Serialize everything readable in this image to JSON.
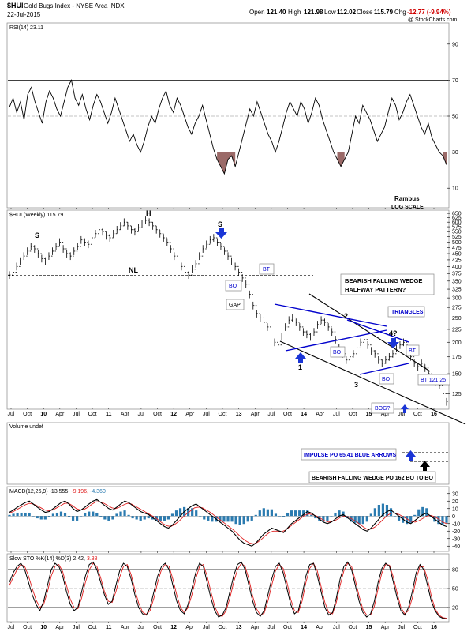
{
  "header": {
    "symbol": "$HUI",
    "name": "Gold Bugs Index - NYSE Arca INDX",
    "date": "22-Jul-2015",
    "open_label": "Open",
    "open": "121.40",
    "high_label": "High",
    "high": "121.98",
    "low_label": "Low",
    "low": "112.02",
    "close_label": "Close",
    "close": "115.79",
    "chg_label": "Chg",
    "chg": "-12.77 (-9.94%)",
    "brand": "@ StockCharts.com"
  },
  "colors": {
    "price": "#000000",
    "pattern": "#0000cc",
    "arrow": "#1a35d6",
    "rsi_fill": "#9b6a68",
    "macd_hist": "#2b7bb0",
    "signal": "#e02020"
  },
  "chart_data": [
    {
      "type": "line",
      "name": "rsi",
      "label": "RSI(14) 23.11",
      "yticks": [
        10,
        30,
        50,
        70,
        90
      ],
      "ylim": [
        0,
        100
      ],
      "levels": [
        30,
        70
      ],
      "values": [
        55,
        60,
        52,
        58,
        48,
        62,
        66,
        58,
        52,
        46,
        58,
        64,
        60,
        54,
        50,
        58,
        66,
        70,
        60,
        56,
        62,
        54,
        48,
        56,
        62,
        58,
        52,
        46,
        52,
        60,
        54,
        48,
        42,
        36,
        40,
        34,
        30,
        36,
        44,
        50,
        46,
        54,
        60,
        64,
        56,
        52,
        60,
        56,
        50,
        44,
        40,
        46,
        50,
        56,
        48,
        40,
        32,
        26,
        22,
        18,
        26,
        28,
        22,
        30,
        38,
        46,
        54,
        50,
        58,
        52,
        46,
        40,
        36,
        30,
        36,
        44,
        52,
        58,
        54,
        50,
        58,
        54,
        46,
        52,
        60,
        56,
        48,
        42,
        36,
        30,
        26,
        22,
        26,
        30,
        40,
        50,
        46,
        56,
        52,
        48,
        42,
        36,
        40,
        44,
        52,
        60,
        56,
        48,
        52,
        58,
        62,
        56,
        50,
        44,
        40,
        46,
        38,
        34,
        30,
        28,
        23
      ]
    },
    {
      "type": "line",
      "name": "price",
      "label": "$HUI (Weekly) 115.79",
      "scale": "log",
      "yticks": [
        125,
        150,
        175,
        200,
        225,
        250,
        275,
        300,
        325,
        350,
        375,
        400,
        425,
        450,
        475,
        500,
        525,
        550,
        575,
        600,
        625,
        650
      ],
      "ylim": [
        110,
        660
      ],
      "x_labels": [
        "Jul",
        "Oct",
        "10",
        "Apr",
        "Jul",
        "Oct",
        "11",
        "Apr",
        "Jul",
        "Oct",
        "12",
        "Apr",
        "Jul",
        "Oct",
        "13",
        "Apr",
        "Jul",
        "Oct",
        "14",
        "Apr",
        "Jul",
        "Oct",
        "15",
        "Apr",
        "Jul",
        "Oct",
        "16"
      ],
      "values": [
        370,
        380,
        400,
        420,
        440,
        460,
        480,
        470,
        450,
        430,
        420,
        440,
        460,
        480,
        500,
        470,
        450,
        440,
        460,
        480,
        510,
        500,
        490,
        520,
        540,
        560,
        550,
        530,
        520,
        540,
        560,
        580,
        600,
        580,
        560,
        550,
        570,
        590,
        610,
        600,
        580,
        560,
        540,
        520,
        500,
        470,
        440,
        420,
        400,
        380,
        370,
        390,
        410,
        440,
        470,
        490,
        510,
        520,
        500,
        480,
        460,
        440,
        420,
        400,
        380,
        360,
        340,
        310,
        280,
        260,
        250,
        240,
        230,
        210,
        200,
        195,
        210,
        230,
        245,
        250,
        240,
        230,
        220,
        215,
        210,
        220,
        235,
        245,
        240,
        230,
        220,
        205,
        190,
        180,
        170,
        175,
        180,
        190,
        200,
        205,
        195,
        185,
        180,
        170,
        165,
        170,
        175,
        180,
        190,
        195,
        200,
        190,
        175,
        165,
        160,
        165,
        158,
        150,
        145,
        140,
        135,
        125,
        116
      ],
      "annotations": [
        "S",
        "H",
        "S",
        "NL",
        "BO",
        "BT",
        "GAP",
        "BEARISH FALLING WEDGE",
        "HALFWAY PATTERN?",
        "TRIANGLES",
        "BO",
        "1",
        "2",
        "3",
        "4?",
        "BO",
        "BT",
        "BT 121.25",
        "BOG?",
        "Rambus",
        "LOG SCALE"
      ]
    },
    {
      "type": "bar",
      "name": "volume",
      "label": "Volume undef",
      "annotations": [
        "IMPULSE PO 65.41 BLUE ARROWS",
        "BEARISH FALLING WEDGE PO 162 BO TO BO"
      ]
    },
    {
      "type": "line",
      "name": "macd",
      "label": "MACD(12,26,9) -13.555, -9.196, -4.360",
      "label_parts": [
        "MACD(12,26,9)",
        "-13.555,",
        "-9.196,",
        "-4.360"
      ],
      "yticks": [
        30,
        20,
        10,
        0,
        -10,
        -20,
        -30,
        -40
      ],
      "ylim": [
        -45,
        35
      ],
      "macd": [
        5,
        8,
        12,
        15,
        18,
        20,
        16,
        12,
        8,
        5,
        6,
        10,
        14,
        18,
        20,
        16,
        10,
        6,
        8,
        12,
        16,
        20,
        22,
        18,
        14,
        10,
        8,
        12,
        16,
        20,
        18,
        14,
        10,
        6,
        4,
        2,
        -2,
        -6,
        -10,
        -14,
        -16,
        -12,
        -6,
        0,
        6,
        10,
        14,
        16,
        12,
        8,
        4,
        0,
        -4,
        -8,
        -12,
        -16,
        -20,
        -26,
        -32,
        -36,
        -38,
        -40,
        -36,
        -30,
        -24,
        -20,
        -16,
        -18,
        -20,
        -22,
        -16,
        -10,
        -6,
        -2,
        2,
        6,
        4,
        0,
        -4,
        -8,
        -10,
        -8,
        -4,
        0,
        2,
        -2,
        -6,
        -10,
        -14,
        -18,
        -20,
        -16,
        -10,
        -4,
        2,
        6,
        8,
        4,
        0,
        -4,
        -8,
        -10,
        -6,
        -2,
        2,
        4,
        0,
        -4,
        -8,
        -12,
        -14
      ],
      "signal": [
        4,
        6,
        9,
        12,
        15,
        17,
        16,
        14,
        11,
        8,
        7,
        8,
        11,
        14,
        17,
        17,
        14,
        10,
        8,
        9,
        12,
        16,
        19,
        19,
        17,
        14,
        11,
        10,
        12,
        15,
        17,
        16,
        13,
        10,
        7,
        4,
        1,
        -2,
        -6,
        -10,
        -13,
        -14,
        -11,
        -7,
        -2,
        3,
        7,
        11,
        12,
        11,
        8,
        5,
        1,
        -3,
        -7,
        -11,
        -15,
        -19,
        -24,
        -29,
        -33,
        -36,
        -37,
        -35,
        -31,
        -26,
        -22,
        -20,
        -20,
        -21,
        -19,
        -15,
        -11,
        -7,
        -3,
        1,
        3,
        2,
        0,
        -3,
        -6,
        -8,
        -7,
        -5,
        -2,
        0,
        -1,
        -4,
        -7,
        -11,
        -15,
        -18,
        -17,
        -14,
        -9,
        -4,
        1,
        4,
        4,
        2,
        -1,
        -4,
        -7,
        -8,
        -6,
        -3,
        0,
        1,
        -1,
        -4,
        -8,
        -10
      ]
    },
    {
      "type": "line",
      "name": "slow-sto",
      "label": "Slow STO %K(14) %D(3) 2.42, 3.38",
      "label_parts": [
        "Slow STO %K(14) %D(3)",
        "2.42,",
        "3.38"
      ],
      "yticks": [
        20,
        50,
        80
      ],
      "ylim": [
        0,
        100
      ],
      "levels": [
        20,
        80
      ],
      "k": [
        60,
        75,
        85,
        90,
        80,
        60,
        40,
        25,
        15,
        30,
        55,
        80,
        90,
        85,
        70,
        45,
        25,
        15,
        20,
        45,
        70,
        88,
        92,
        80,
        60,
        40,
        25,
        30,
        55,
        78,
        90,
        85,
        65,
        40,
        20,
        10,
        8,
        20,
        45,
        70,
        85,
        90,
        80,
        55,
        30,
        15,
        10,
        25,
        50,
        75,
        90,
        85,
        60,
        35,
        15,
        5,
        8,
        20,
        45,
        70,
        88,
        92,
        80,
        55,
        30,
        12,
        6,
        15,
        40,
        65,
        85,
        90,
        75,
        50,
        25,
        10,
        15,
        40,
        70,
        88,
        90,
        70,
        45,
        20,
        8,
        12,
        35,
        65,
        85,
        92,
        80,
        55,
        30,
        12,
        5,
        10,
        30,
        60,
        82,
        90,
        85,
        60,
        35,
        15,
        8,
        20,
        45,
        75,
        88,
        80,
        55,
        30,
        15,
        6,
        3,
        2
      ],
      "d": [
        55,
        68,
        80,
        88,
        85,
        70,
        50,
        32,
        20,
        25,
        45,
        70,
        85,
        88,
        77,
        55,
        33,
        20,
        18,
        35,
        60,
        80,
        90,
        85,
        67,
        45,
        30,
        28,
        45,
        68,
        85,
        88,
        72,
        48,
        27,
        13,
        9,
        15,
        35,
        60,
        80,
        88,
        85,
        65,
        40,
        20,
        12,
        20,
        40,
        65,
        85,
        88,
        70,
        45,
        22,
        8,
        6,
        15,
        35,
        60,
        80,
        90,
        85,
        65,
        38,
        18,
        8,
        11,
        30,
        55,
        78,
        88,
        82,
        60,
        33,
        15,
        12,
        30,
        60,
        82,
        90,
        78,
        53,
        28,
        12,
        10,
        28,
        55,
        78,
        90,
        85,
        63,
        38,
        17,
        8,
        8,
        22,
        50,
        75,
        88,
        87,
        68,
        43,
        20,
        10,
        15,
        35,
        65,
        85,
        84,
        65,
        38,
        18,
        8,
        4,
        3
      ]
    }
  ]
}
